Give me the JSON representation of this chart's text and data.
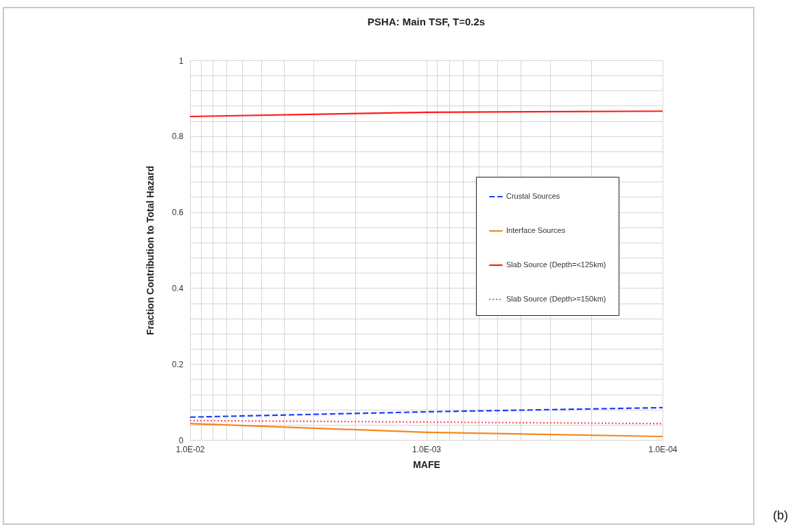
{
  "chart_data": {
    "type": "line",
    "title": "PSHA: Main TSF, T=0.2s",
    "xlabel": "MAFE",
    "ylabel": "Fraction Contribution to Total Hazard",
    "x": [
      0.01,
      0.001,
      0.0001
    ],
    "series": [
      {
        "name": "Crustal Sources",
        "color": "#1a3cff",
        "line_style": "dashed",
        "values": [
          0.06,
          0.074,
          0.085
        ]
      },
      {
        "name": "Interface Sources",
        "color": "#f7861c",
        "line_style": "solid",
        "values": [
          0.043,
          0.02,
          0.009
        ]
      },
      {
        "name": "Slab Source (Depth=<125km)",
        "color": "#ff1a1a",
        "line_style": "solid",
        "values": [
          0.852,
          0.863,
          0.866
        ]
      },
      {
        "name": "Slab Source (Depth>=150km)",
        "color": "#ff4d5a",
        "line_style": "dotted",
        "values": [
          0.051,
          0.047,
          0.043
        ]
      }
    ],
    "log": "x",
    "xlim": [
      0.01,
      0.0001
    ],
    "xticks": [
      {
        "value": 0.01,
        "label": "1.0E-02"
      },
      {
        "value": 0.001,
        "label": "1.0E-03"
      },
      {
        "value": 0.0001,
        "label": "1.0E-04"
      }
    ],
    "ylim": [
      0,
      1
    ],
    "yticks": [
      0,
      0.2,
      0.4,
      0.6,
      0.8,
      1
    ],
    "grid": true,
    "legend": "right",
    "marker": "none",
    "annotations": [
      "(b)"
    ]
  }
}
